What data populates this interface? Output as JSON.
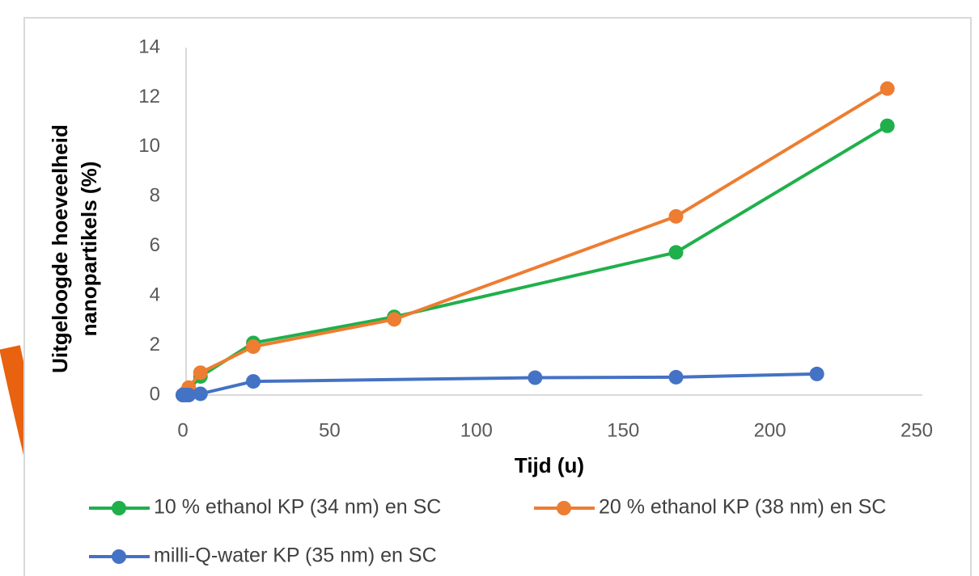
{
  "chart_data": {
    "type": "line",
    "x_label": "Tijd (u)",
    "y_label": [
      "Uitgeloogde hoeveelheid",
      "nanopartikels (%)"
    ],
    "xlim": [
      0,
      250
    ],
    "xticks": [
      0,
      50,
      100,
      150,
      200,
      250
    ],
    "ylim": [
      0,
      14
    ],
    "yticks": [
      0,
      2,
      4,
      6,
      8,
      10,
      12,
      14
    ],
    "grid": false,
    "legend": "bottom",
    "series": [
      {
        "name": "10 % ethanol KP (34 nm) en SC",
        "color": "#1fb04b",
        "x": [
          0,
          1,
          2,
          6,
          24,
          72,
          168,
          240
        ],
        "values": [
          0,
          0.1,
          0.2,
          0.75,
          2.1,
          3.15,
          5.75,
          10.85
        ]
      },
      {
        "name": "20 % ethanol KP (38 nm) en SC",
        "color": "#ed7d31",
        "x": [
          0,
          2,
          6,
          24,
          72,
          168,
          240
        ],
        "values": [
          0,
          0.3,
          0.9,
          1.95,
          3.05,
          7.2,
          12.35
        ]
      },
      {
        "name": "milli-Q-water KP (35 nm) en SC",
        "color": "#4472c4",
        "x": [
          0,
          1,
          2,
          6,
          24,
          120,
          168,
          216
        ],
        "values": [
          0,
          0,
          0,
          0.05,
          0.55,
          0.7,
          0.72,
          0.85
        ]
      }
    ]
  }
}
